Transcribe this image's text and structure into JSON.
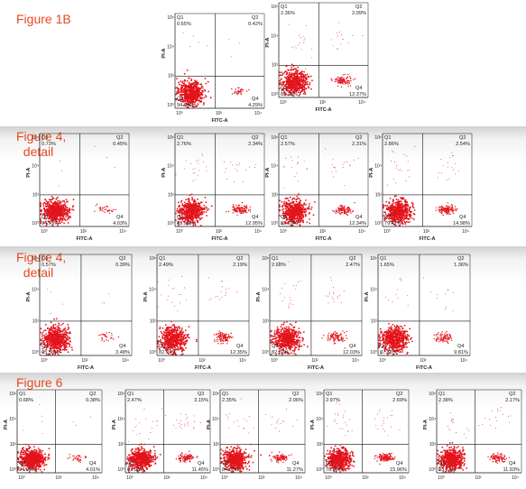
{
  "colors": {
    "figure_label": "#e8491d",
    "dots": "#e3141c",
    "axes": "#111111"
  },
  "figures": [
    {
      "label": "Figure 1B",
      "tick_labels": {
        "x": [
          "10⁰",
          "10²",
          "10⁴"
        ],
        "y": [
          "10⁰",
          "10²",
          "10⁴",
          "10⁶"
        ]
      },
      "xlabel": "FITC-A",
      "ylabel": "PI-A",
      "chart_data": [
        {
          "type": "scatter",
          "xlabel": "FITC-A",
          "ylabel": "PI-A",
          "quadrants": {
            "Q1": "0.65%",
            "Q2": "0.42%",
            "Q3": "94.64%",
            "Q4": "4.29%"
          }
        },
        {
          "type": "scatter",
          "xlabel": "FITC-A",
          "ylabel": "PI-A",
          "quadrants": {
            "Q1": "2.36%",
            "Q2": "2.09%",
            "Q3": "83.18%",
            "Q4": "12.37%"
          }
        }
      ]
    },
    {
      "label": "Figure 4,\n  detail",
      "tick_labels": {
        "x": [
          "10⁰",
          "10²",
          "10⁴"
        ],
        "y": [
          "10⁰",
          "10²",
          "10⁴",
          "10⁶"
        ]
      },
      "xlabel": "FITC-A",
      "ylabel": "PI-A",
      "chart_data": [
        {
          "type": "scatter",
          "xlabel": "FITC-A",
          "ylabel": "PI-A",
          "quadrants": {
            "Q1": "0.73%",
            "Q2": "0.45%",
            "Q3": "94.79%",
            "Q4": "4.03%"
          }
        },
        {
          "type": "scatter",
          "xlabel": "FITC-A",
          "ylabel": "PI-A",
          "quadrants": {
            "Q1": "2.76%",
            "Q2": "2.34%",
            "Q3": "81.95%",
            "Q4": "12.95%"
          }
        },
        {
          "type": "scatter",
          "xlabel": "FITC-A",
          "ylabel": "PI-A",
          "quadrants": {
            "Q1": "2.57%",
            "Q2": "2.31%",
            "Q3": "82.78%",
            "Q4": "12.34%"
          }
        },
        {
          "type": "scatter",
          "xlabel": "FITC-A",
          "ylabel": "PI-A",
          "quadrants": {
            "Q1": "2.86%",
            "Q2": "2.54%",
            "Q3": "79.62%",
            "Q4": "14.98%"
          }
        }
      ]
    },
    {
      "label": "Figure 4,\n  detail",
      "tick_labels": {
        "x": [
          "10⁰",
          "10²",
          "10⁴"
        ],
        "y": [
          "10⁰",
          "10²",
          "10⁴",
          "10⁶"
        ]
      },
      "xlabel": "FITC-A",
      "ylabel": "PI-A",
      "chart_data": [
        {
          "type": "scatter",
          "xlabel": "FITC-A",
          "ylabel": "PI-A",
          "quadrants": {
            "Q1": "0.57%",
            "Q2": "0.39%",
            "Q3": "95.56%",
            "Q4": "3.48%"
          }
        },
        {
          "type": "scatter",
          "xlabel": "FITC-A",
          "ylabel": "PI-A",
          "quadrants": {
            "Q1": "2.49%",
            "Q2": "2.19%",
            "Q3": "82.97%",
            "Q4": "12.35%"
          }
        },
        {
          "type": "scatter",
          "xlabel": "FITC-A",
          "ylabel": "PI-A",
          "quadrants": {
            "Q1": "2.68%",
            "Q2": "2.47%",
            "Q3": "82.83%",
            "Q4": "12.03%"
          }
        },
        {
          "type": "scatter",
          "xlabel": "FITC-A",
          "ylabel": "PI-A",
          "quadrants": {
            "Q1": "1.65%",
            "Q2": "1.36%",
            "Q3": "87.18%",
            "Q4": "9.81%"
          }
        }
      ]
    },
    {
      "label": "Figure 6",
      "tick_labels": {
        "x": [
          "10⁰",
          "10²",
          "10⁴"
        ],
        "y": [
          "10⁰",
          "10²",
          "10⁴",
          "10⁶"
        ]
      },
      "xlabel": "",
      "ylabel": "PI-A",
      "chart_data": [
        {
          "type": "scatter",
          "ylabel": "PI-A",
          "quadrants": {
            "Q1": "0.68%",
            "Q2": "0.38%",
            "Q3": "94.98%",
            "Q4": "4.01%"
          }
        },
        {
          "type": "scatter",
          "ylabel": "PI-A",
          "quadrants": {
            "Q1": "2.47%",
            "Q2": "3.15%",
            "Q3": "83.03%",
            "Q4": "11.45%"
          }
        },
        {
          "type": "scatter",
          "ylabel": "PI-A",
          "quadrants": {
            "Q1": "2.35%",
            "Q2": "2.06%",
            "Q3": "84.32%",
            "Q4": "11.27%"
          }
        },
        {
          "type": "scatter",
          "ylabel": "PI-A",
          "quadrants": {
            "Q1": "2.97%",
            "Q2": "2.69%",
            "Q3": "78.38%",
            "Q4": "15.96%"
          }
        },
        {
          "type": "scatter",
          "ylabel": "PI-A",
          "quadrants": {
            "Q1": "2.38%",
            "Q2": "2.17%",
            "Q3": "83.52%",
            "Q4": "11.93%"
          }
        }
      ]
    }
  ]
}
